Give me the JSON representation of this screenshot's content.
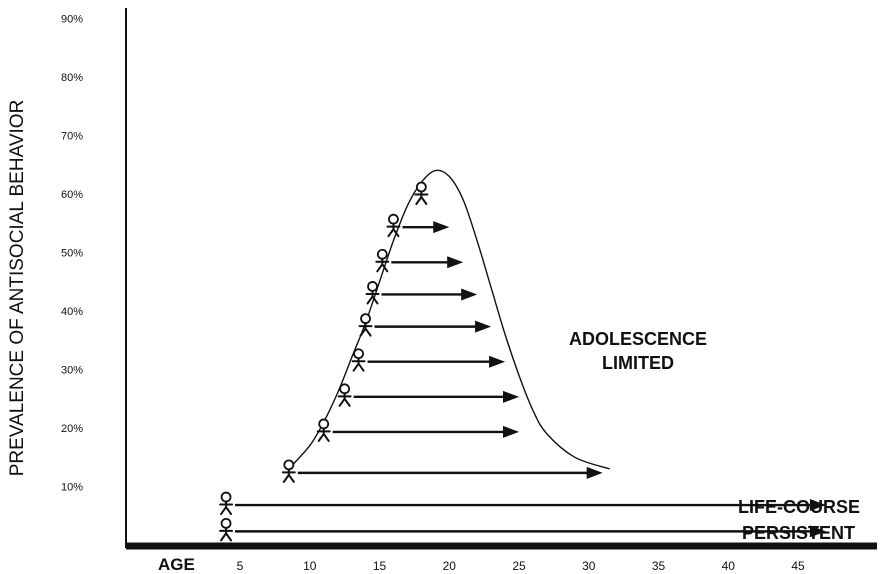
{
  "chart_data": {
    "type": "line",
    "ylabel": "PREVALENCE OF ANTISOCIAL BEHAVIOR",
    "xlabel": "AGE",
    "y_ticks": [
      "10%",
      "20%",
      "30%",
      "40%",
      "50%",
      "60%",
      "70%",
      "80%",
      "90%"
    ],
    "x_ticks": [
      "5",
      "10",
      "15",
      "20",
      "25",
      "30",
      "35",
      "40",
      "45"
    ],
    "xlim": [
      2,
      50
    ],
    "ylim": [
      0,
      95
    ],
    "grid": false,
    "series": [
      {
        "name": "ADOLESCENCE LIMITED",
        "x": [
          8.5,
          10,
          11,
          12,
          13,
          14,
          15,
          16,
          17,
          18,
          19,
          20,
          21,
          22,
          23,
          24,
          25,
          26,
          27,
          29,
          31.5
        ],
        "y": [
          13,
          17,
          21,
          26,
          32,
          38,
          45,
          52,
          58,
          62,
          64,
          63,
          59,
          52,
          44,
          36,
          29,
          23,
          19,
          15,
          13
        ]
      }
    ],
    "figures": [
      {
        "age": 18,
        "level": 60,
        "arrow_to": null
      },
      {
        "age": 16,
        "level": 54.5,
        "arrow_to": 20
      },
      {
        "age": 15.2,
        "level": 48.5,
        "arrow_to": 21
      },
      {
        "age": 14.5,
        "level": 43,
        "arrow_to": 22
      },
      {
        "age": 14,
        "level": 37.5,
        "arrow_to": 23
      },
      {
        "age": 13.5,
        "level": 31.5,
        "arrow_to": 24
      },
      {
        "age": 12.5,
        "level": 25.5,
        "arrow_to": 25
      },
      {
        "age": 11,
        "level": 19.5,
        "arrow_to": 25
      },
      {
        "age": 8.5,
        "level": 12.5,
        "arrow_to": 31
      }
    ],
    "persistent_figures": [
      {
        "age": 4,
        "level": 7,
        "arrow_to": 47
      },
      {
        "age": 4,
        "level": 2.5,
        "arrow_to": 47
      }
    ],
    "annotations": {
      "adolescence_line1": "ADOLESCENCE",
      "adolescence_line2": "LIMITED",
      "lifecourse_line1": "LIFE-COURSE",
      "lifecourse_line2": "PERSISTENT"
    }
  }
}
